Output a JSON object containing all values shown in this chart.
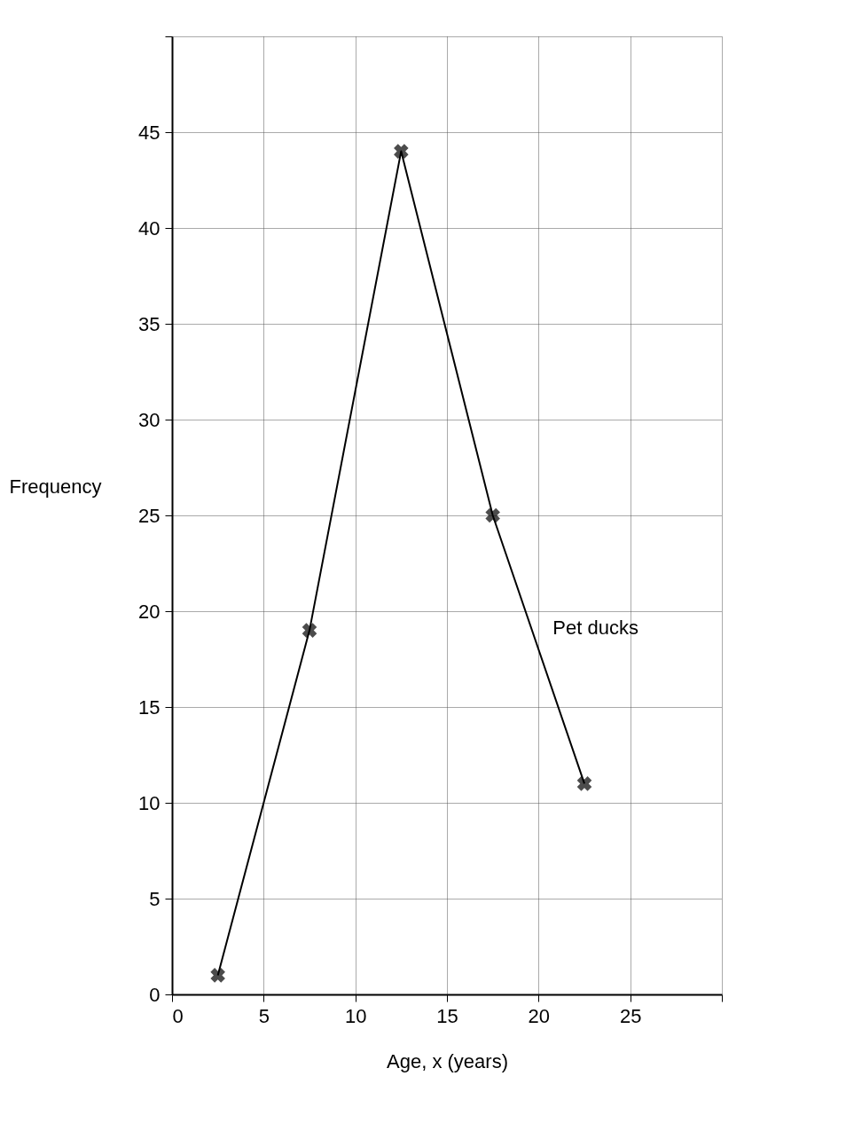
{
  "chart_data": {
    "type": "line",
    "xlabel": "Age, x (years)",
    "ylabel": "Frequency",
    "x": [
      2.5,
      7.5,
      12.5,
      17.5,
      22.5
    ],
    "series": [
      {
        "name": "Pet ducks",
        "color": "#000000",
        "values": [
          1,
          19,
          44,
          25,
          11
        ]
      }
    ],
    "xlim": [
      0,
      30
    ],
    "xticks": [
      0,
      5,
      10,
      15,
      20,
      25,
      {
        "value": 30,
        "label": null
      }
    ],
    "ylim": [
      0,
      50
    ],
    "yticks": [
      0,
      5,
      10,
      15,
      20,
      25,
      30,
      35,
      40,
      45,
      {
        "value": 50,
        "label": null
      }
    ],
    "grid": true,
    "marker": "cross",
    "line_style": "solid"
  }
}
